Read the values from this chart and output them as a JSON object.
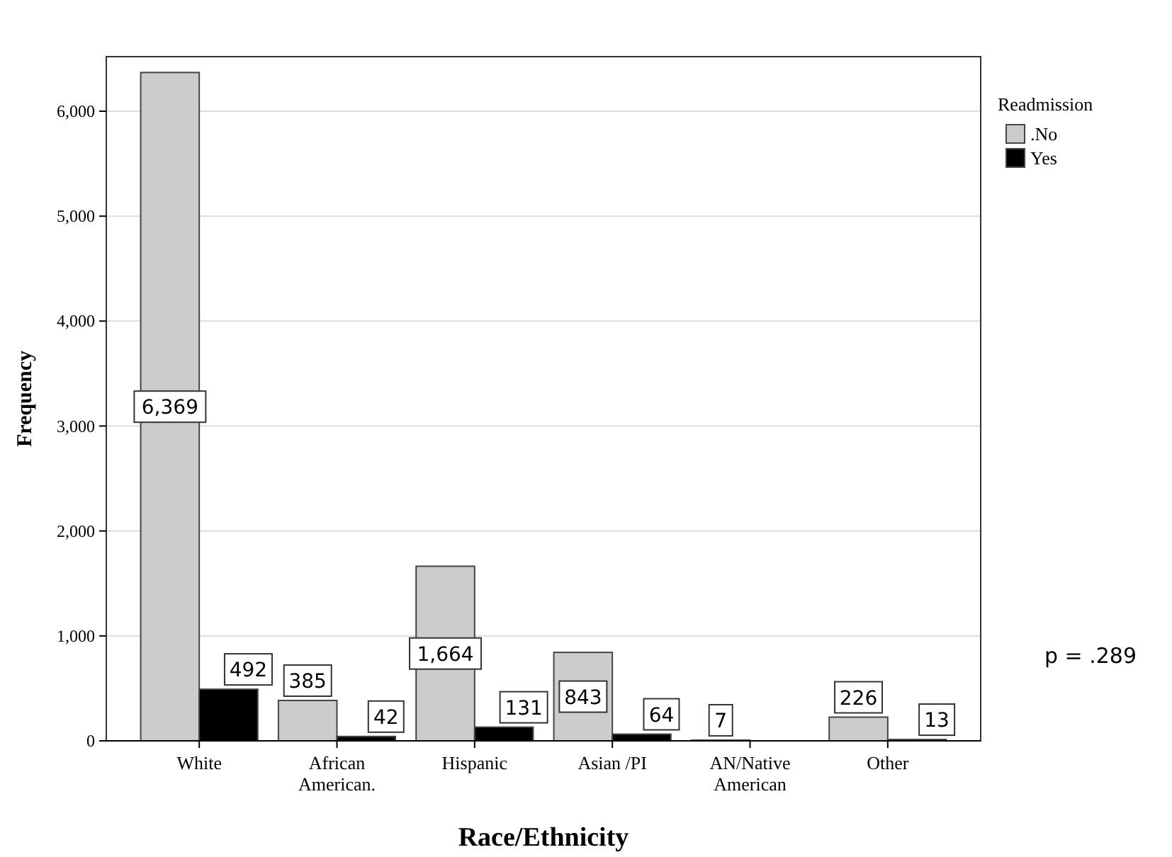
{
  "chart_data": {
    "type": "bar",
    "xlabel": "Race/Ethnicity",
    "ylabel": "Frequency",
    "legend_title": "Readmission",
    "categories": [
      "White",
      "African American.",
      "Hispanic",
      "Asian /PI",
      "AN/Native American",
      "Other"
    ],
    "series": [
      {
        "name": ".No",
        "color": "#cccccc",
        "values": [
          6369,
          385,
          1664,
          843,
          7,
          226
        ],
        "value_labels": [
          "6,369",
          "385",
          "1,664",
          "843",
          "7",
          "226"
        ]
      },
      {
        "name": "Yes",
        "color": "#000000",
        "values": [
          492,
          42,
          131,
          64,
          null,
          13
        ],
        "value_labels": [
          "492",
          "42",
          "131",
          "64",
          null,
          "13"
        ]
      }
    ],
    "ylim": [
      0,
      6520
    ],
    "yticks": [
      {
        "value": 0,
        "label": "0"
      },
      {
        "value": 1000,
        "label": "1,000"
      },
      {
        "value": 2000,
        "label": "2,000"
      },
      {
        "value": 3000,
        "label": "3,000"
      },
      {
        "value": 4000,
        "label": "4,000"
      },
      {
        "value": 5000,
        "label": "5,000"
      },
      {
        "value": 6000,
        "label": "6,000"
      }
    ],
    "grid": "y",
    "legend": "right",
    "annotations": [
      "p = .289"
    ]
  }
}
